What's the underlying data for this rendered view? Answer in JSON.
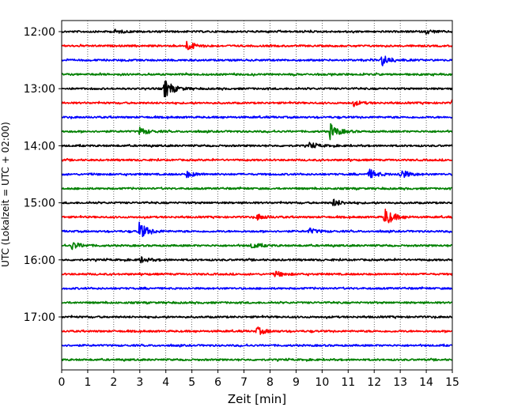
{
  "chart_data": {
    "type": "line",
    "title": "",
    "xlabel": "Zeit  [min]",
    "ylabel": "UTC (Lokalzeit = UTC + 02:00)",
    "xlim": [
      0,
      15
    ],
    "x_ticks": [
      "0",
      "1",
      "2",
      "3",
      "4",
      "5",
      "6",
      "7",
      "8",
      "9",
      "10",
      "11",
      "12",
      "13",
      "14",
      "15"
    ],
    "y_tick_labels": [
      "12:00",
      "13:00",
      "14:00",
      "15:00",
      "16:00",
      "17:00"
    ],
    "grid": "vertical dotted at each minute",
    "trace_interval_minutes": 15,
    "traces_start": "12:00",
    "trace_colors": [
      "#000000",
      "#ff0000",
      "#0000ff",
      "#008000"
    ],
    "traces": [
      {
        "start": "12:00",
        "color": "#000000",
        "events": [
          {
            "t": 2.0,
            "amp": 0.2
          },
          {
            "t": 14.0,
            "amp": 0.2
          }
        ]
      },
      {
        "start": "12:15",
        "color": "#ff0000",
        "events": [
          {
            "t": 4.8,
            "amp": 0.5
          }
        ]
      },
      {
        "start": "12:30",
        "color": "#0000ff",
        "events": [
          {
            "t": 12.3,
            "amp": 0.6
          }
        ]
      },
      {
        "start": "12:45",
        "color": "#008000",
        "events": []
      },
      {
        "start": "13:00",
        "color": "#000000",
        "events": [
          {
            "t": 3.95,
            "amp": 1.0
          }
        ]
      },
      {
        "start": "13:15",
        "color": "#ff0000",
        "events": [
          {
            "t": 11.2,
            "amp": 0.25
          },
          {
            "t": 15.0,
            "amp": 0.3
          }
        ]
      },
      {
        "start": "13:30",
        "color": "#0000ff",
        "events": []
      },
      {
        "start": "13:45",
        "color": "#008000",
        "events": [
          {
            "t": 3.0,
            "amp": 0.4
          },
          {
            "t": 10.3,
            "amp": 0.8
          }
        ]
      },
      {
        "start": "14:00",
        "color": "#000000",
        "events": [
          {
            "t": 9.5,
            "amp": 0.3
          }
        ]
      },
      {
        "start": "14:15",
        "color": "#ff0000",
        "events": []
      },
      {
        "start": "14:30",
        "color": "#0000ff",
        "events": [
          {
            "t": 4.8,
            "amp": 0.3
          },
          {
            "t": 11.8,
            "amp": 0.5
          },
          {
            "t": 13.0,
            "amp": 0.5
          }
        ]
      },
      {
        "start": "14:45",
        "color": "#008000",
        "events": []
      },
      {
        "start": "15:00",
        "color": "#000000",
        "events": [
          {
            "t": 10.4,
            "amp": 0.4
          }
        ]
      },
      {
        "start": "15:15",
        "color": "#ff0000",
        "events": [
          {
            "t": 7.5,
            "amp": 0.3
          },
          {
            "t": 12.4,
            "amp": 1.0
          }
        ]
      },
      {
        "start": "15:30",
        "color": "#0000ff",
        "events": [
          {
            "t": 2.95,
            "amp": 1.0
          },
          {
            "t": 9.5,
            "amp": 0.3
          }
        ]
      },
      {
        "start": "15:45",
        "color": "#008000",
        "events": [
          {
            "t": 0.4,
            "amp": 0.4
          },
          {
            "t": 7.3,
            "amp": 0.3
          }
        ]
      },
      {
        "start": "16:00",
        "color": "#000000",
        "events": [
          {
            "t": 3.0,
            "amp": 0.3
          }
        ]
      },
      {
        "start": "16:15",
        "color": "#ff0000",
        "events": [
          {
            "t": 8.2,
            "amp": 0.3
          }
        ]
      },
      {
        "start": "16:30",
        "color": "#0000ff",
        "events": []
      },
      {
        "start": "16:45",
        "color": "#008000",
        "events": []
      },
      {
        "start": "17:00",
        "color": "#000000",
        "events": []
      },
      {
        "start": "17:15",
        "color": "#ff0000",
        "events": [
          {
            "t": 7.5,
            "amp": 0.4
          }
        ]
      },
      {
        "start": "17:30",
        "color": "#0000ff",
        "events": []
      },
      {
        "start": "17:45",
        "color": "#008000",
        "events": []
      }
    ]
  }
}
